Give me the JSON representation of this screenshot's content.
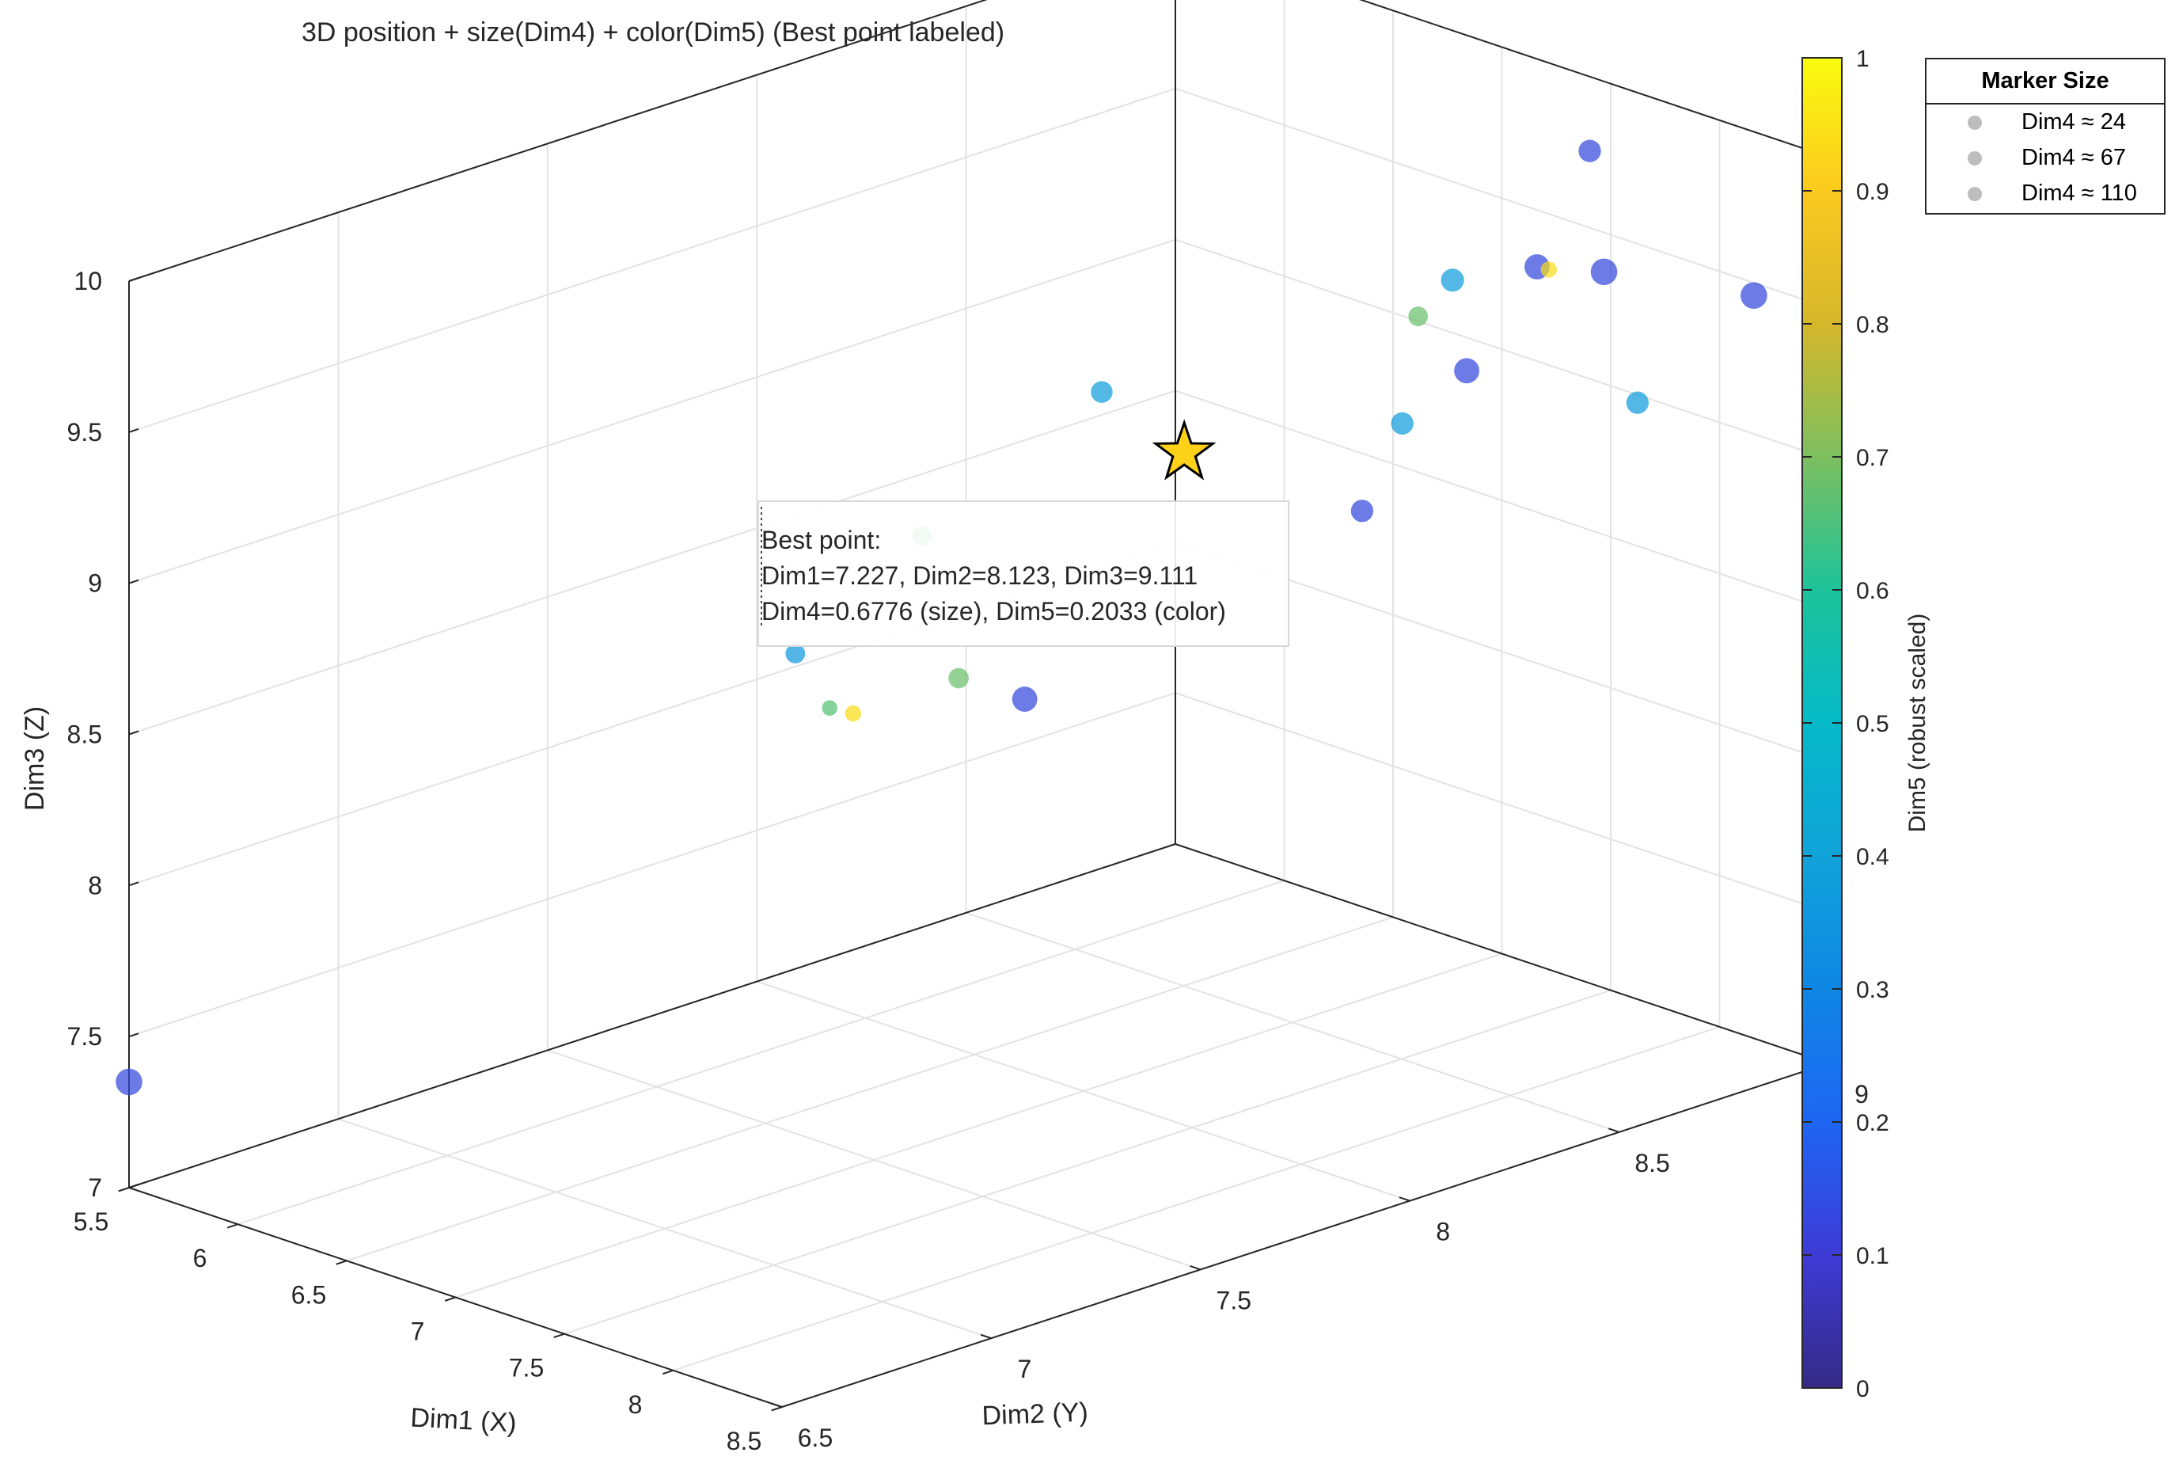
{
  "chart_data": {
    "type": "scatter3d",
    "title": "3D position + size(Dim4) + color(Dim5)  (Best point labeled)",
    "xlabel": "Dim1 (X)",
    "ylabel": "Dim2 (Y)",
    "zlabel": "Dim3 (Z)",
    "xlim": [
      5.5,
      8.5
    ],
    "ylim": [
      6.5,
      9
    ],
    "zlim": [
      7,
      10
    ],
    "xticks": [
      "5.5",
      "6",
      "6.5",
      "7",
      "7.5",
      "8",
      "8.5"
    ],
    "yticks": [
      "6.5",
      "7",
      "7.5",
      "8",
      "8.5",
      "9"
    ],
    "zticks": [
      "7",
      "7.5",
      "8",
      "8.5",
      "9",
      "9.5",
      "10"
    ],
    "grid": true,
    "points": [
      {
        "x": 5.5,
        "y": 6.5,
        "z": 7.35,
        "dim4": 80,
        "dim5": 0.13
      },
      {
        "x": 6.35,
        "y": 7.65,
        "z": 8.45,
        "dim4": 40,
        "dim5": 0.37
      },
      {
        "x": 6.7,
        "y": 7.55,
        "z": 8.4,
        "dim4": 16,
        "dim5": 0.66
      },
      {
        "x": 6.45,
        "y": 7.9,
        "z": 8.75,
        "dim4": 40,
        "dim5": 0.68
      },
      {
        "x": 7.0,
        "y": 7.45,
        "z": 8.5,
        "dim4": 20,
        "dim5": 0.94
      },
      {
        "x": 7.1,
        "y": 7.65,
        "z": 8.55,
        "dim4": 44,
        "dim5": 0.68
      },
      {
        "x": 7.5,
        "y": 7.6,
        "z": 8.6,
        "dim4": 72,
        "dim5": 0.13
      },
      {
        "x": 6.7,
        "y": 8.2,
        "z": 9.15,
        "dim4": 52,
        "dim5": 0.38
      },
      {
        "x": 7.0,
        "y": 8.8,
        "z": 9.2,
        "dim4": 40,
        "dim5": 0.68
      },
      {
        "x": 7.35,
        "y": 8.7,
        "z": 9.45,
        "dim4": 60,
        "dim5": 0.38
      },
      {
        "x": 7.45,
        "y": 8.85,
        "z": 9.45,
        "dim4": 72,
        "dim5": 0.13
      },
      {
        "x": 7.6,
        "y": 8.8,
        "z": 9.5,
        "dim4": 20,
        "dim5": 0.94
      },
      {
        "x": 7.8,
        "y": 8.5,
        "z": 9.35,
        "dim4": 72,
        "dim5": 0.13
      },
      {
        "x": 7.5,
        "y": 8.95,
        "z": 9.8,
        "dim4": 56,
        "dim5": 0.13
      },
      {
        "x": 7.95,
        "y": 8.75,
        "z": 9.6,
        "dim4": 80,
        "dim5": 0.13
      },
      {
        "x": 7.8,
        "y": 8.25,
        "z": 9.0,
        "dim4": 56,
        "dim5": 0.13
      },
      {
        "x": 7.6,
        "y": 8.45,
        "z": 9.15,
        "dim4": 56,
        "dim5": 0.38
      },
      {
        "x": 8.2,
        "y": 8.7,
        "z": 9.25,
        "dim4": 56,
        "dim5": 0.38
      },
      {
        "x": 8.35,
        "y": 8.9,
        "z": 9.55,
        "dim4": 80,
        "dim5": 0.13
      }
    ],
    "best_point": {
      "dim1": 7.227,
      "dim2": 8.123,
      "dim3": 9.111,
      "dim4": 0.6776,
      "dim5": 0.2033
    },
    "annotation": {
      "line1": "Best point:",
      "line2": "Dim1=7.227, Dim2=8.123, Dim3=9.111",
      "line3": "Dim4=0.6776 (size), Dim5=0.2033 (color)"
    },
    "colorbar": {
      "label": "Dim5 (robust scaled)",
      "range": [
        0,
        1
      ],
      "ticks": [
        "0",
        "0.1",
        "0.2",
        "0.3",
        "0.4",
        "0.5",
        "0.6",
        "0.7",
        "0.8",
        "0.9",
        "1"
      ]
    },
    "size_legend": {
      "title": "Marker Size",
      "position": "top-right",
      "items": [
        "Dim4 ≈ 24",
        "Dim4 ≈ 67",
        "Dim4 ≈ 110"
      ]
    }
  }
}
